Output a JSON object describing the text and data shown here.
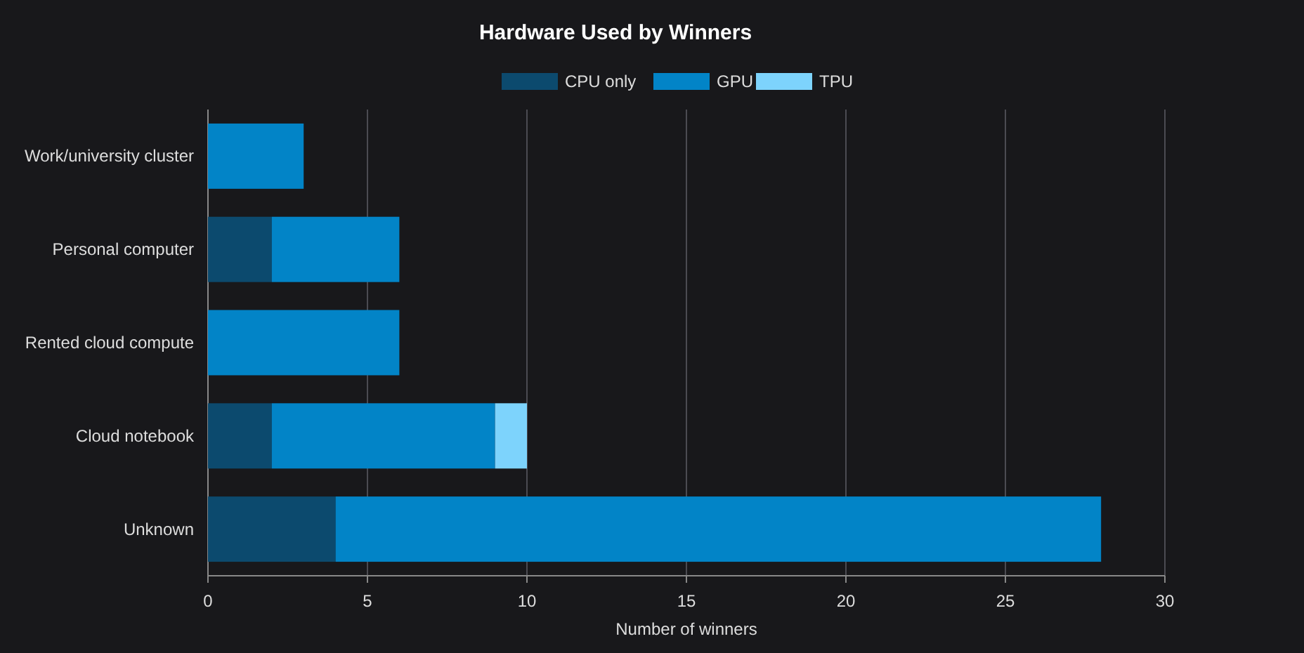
{
  "chart_data": {
    "type": "bar",
    "orientation": "horizontal",
    "stacked": true,
    "title": "Hardware Used by Winners",
    "xlabel": "Number of winners",
    "categories": [
      "Work/university cluster",
      "Personal computer",
      "Rented cloud compute",
      "Cloud notebook",
      "Unknown"
    ],
    "series": [
      {
        "name": "CPU only",
        "color": "#0c4a6e",
        "values": [
          0,
          2,
          0,
          2,
          4
        ]
      },
      {
        "name": "GPU",
        "color": "#0284c7",
        "values": [
          3,
          4,
          6,
          7,
          24
        ]
      },
      {
        "name": "TPU",
        "color": "#7dd3fc",
        "values": [
          0,
          0,
          0,
          1,
          0
        ]
      }
    ],
    "xlim": [
      0,
      30
    ],
    "xticks": [
      0,
      5,
      10,
      15,
      20,
      25,
      30
    ],
    "grid": "x",
    "legend": "top"
  }
}
